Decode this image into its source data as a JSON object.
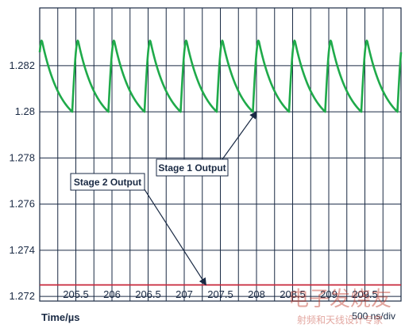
{
  "chart_data": {
    "type": "line",
    "xlabel": "Time/µs",
    "ylabel": "",
    "title": "",
    "x_ticks": [
      "205.5",
      "206",
      "206.5",
      "207",
      "207.5",
      "208",
      "208.5",
      "209",
      "209.5"
    ],
    "y_ticks": [
      "1.282",
      "1.28",
      "1.278",
      "1.276",
      "1.274",
      "1.272"
    ],
    "xlim": [
      205.0,
      210.0
    ],
    "ylim": [
      1.2718,
      1.2845
    ],
    "grid": true,
    "scale_label": "500 ns/div",
    "series": [
      {
        "name": "Stage 1 Output",
        "color": "#1faa4a",
        "period": 0.5,
        "phase": 205.45,
        "min": 1.28,
        "max": 1.2831,
        "rise_fraction": 0.16
      },
      {
        "name": "Stage 2 Output",
        "color": "#c8283c",
        "y": 1.2725
      }
    ],
    "annotations": [
      {
        "text": "Stage 1 Output",
        "target_x": 208.0,
        "target_y": 1.28
      },
      {
        "text": "Stage 2 Output",
        "target_x": 207.3,
        "target_y": 1.2725
      }
    ]
  },
  "watermark": {
    "text_top": "电子发烧友",
    "text_bottom": "射频和天线设计专家"
  }
}
